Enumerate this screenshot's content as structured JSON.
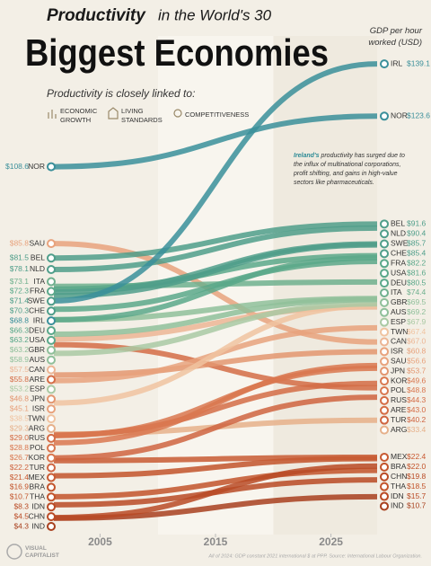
{
  "chart_data": {
    "type": "line",
    "title": [
      "Productivity",
      "in the World's 30",
      "Biggest Economies"
    ],
    "subtitle": "Productivity is closely linked to:",
    "drivers": [
      [
        "ECONOMIC",
        "GROWTH"
      ],
      [
        "LIVING",
        "STANDARDS"
      ],
      [
        "COMPETITIVENESS"
      ]
    ],
    "y_label": [
      "GDP per hour",
      "worked (USD)"
    ],
    "annotation_highlight": "Ireland's",
    "annotation": [
      " productivity has surged due to",
      "the influx of multinational corporations,",
      "profit shifting, and gains in high-value",
      "sectors like pharmaceuticals."
    ],
    "source": "All of 2024: GDP constant 2021 international $ at PPP. Source: International Labour Organization.",
    "brand": [
      "VISUAL",
      "CAPITALIST"
    ],
    "x": [
      2001,
      2029
    ],
    "xlim": [
      2001,
      2029
    ],
    "xticks": [
      2005,
      2015,
      2025
    ],
    "ylim": [
      0,
      145
    ],
    "series": [
      {
        "name": "IRL",
        "color": "#3a8f9a",
        "values": [
          68.8,
          139.1
        ],
        "value_labels": [
          "$68.8",
          "$139.1"
        ]
      },
      {
        "name": "NOR",
        "color": "#3a8f9a",
        "values": [
          108.6,
          123.6
        ],
        "value_labels": [
          "$108.6",
          "$123.6"
        ]
      },
      {
        "name": "BEL",
        "color": "#4f9e8a",
        "values": [
          81.5,
          91.6
        ],
        "value_labels": [
          "$81.5",
          "$91.6"
        ]
      },
      {
        "name": "NLD",
        "color": "#4f9e8a",
        "values": [
          78.1,
          90.4
        ],
        "value_labels": [
          "$78.1",
          "$90.4"
        ]
      },
      {
        "name": "SWE",
        "color": "#4f9e8a",
        "values": [
          71.4,
          85.7
        ],
        "value_labels": [
          "$71.4",
          "$85.7"
        ]
      },
      {
        "name": "CHE",
        "color": "#4f9e8a",
        "values": [
          70.3,
          85.4
        ],
        "value_labels": [
          "$70.3",
          "$85.4"
        ]
      },
      {
        "name": "FRA",
        "color": "#5aa88a",
        "values": [
          72.3,
          82.2
        ],
        "value_labels": [
          "$72.3",
          "$82.2"
        ]
      },
      {
        "name": "USA",
        "color": "#5aa88a",
        "values": [
          63.2,
          81.6
        ],
        "value_labels": [
          "$63.2",
          "$81.6"
        ]
      },
      {
        "name": "DEU",
        "color": "#5aa88a",
        "values": [
          66.3,
          80.5
        ],
        "value_labels": [
          "$66.3",
          "$80.5"
        ]
      },
      {
        "name": "ITA",
        "color": "#6fb08e",
        "values": [
          73.1,
          74.4
        ],
        "value_labels": [
          "$73.1",
          "$74.4"
        ]
      },
      {
        "name": "GBR",
        "color": "#8fbf9a",
        "values": [
          63.2,
          69.5
        ],
        "value_labels": [
          "$63.2",
          "$69.5"
        ]
      },
      {
        "name": "AUS",
        "color": "#8fbf9a",
        "values": [
          58.9,
          69.2
        ],
        "value_labels": [
          "$58.9",
          "$69.2"
        ]
      },
      {
        "name": "ESP",
        "color": "#a9c9a3",
        "values": [
          53.2,
          67.9
        ],
        "value_labels": [
          "$53.2",
          "$67.9"
        ]
      },
      {
        "name": "TWN",
        "color": "#f0c3a0",
        "values": [
          38.5,
          67.4
        ],
        "value_labels": [
          "$38.5",
          "$67.4"
        ]
      },
      {
        "name": "CAN",
        "color": "#ecb594",
        "values": [
          57.5,
          67.0
        ],
        "value_labels": [
          "$57.5",
          "$67.0"
        ]
      },
      {
        "name": "ISR",
        "color": "#e8a27c",
        "values": [
          45.1,
          60.8
        ],
        "value_labels": [
          "$45.1",
          "$60.8"
        ]
      },
      {
        "name": "SAU",
        "color": "#e8a27c",
        "values": [
          85.8,
          56.6
        ],
        "value_labels": [
          "$85.8",
          "$56.6"
        ]
      },
      {
        "name": "JPN",
        "color": "#e39670",
        "values": [
          46.8,
          53.7
        ],
        "value_labels": [
          "$46.8",
          "$53.7"
        ]
      },
      {
        "name": "KOR",
        "color": "#d9774f",
        "values": [
          26.7,
          49.6
        ],
        "value_labels": [
          "$26.7",
          "$49.6"
        ]
      },
      {
        "name": "POL",
        "color": "#d9774f",
        "values": [
          28.8,
          48.8
        ],
        "value_labels": [
          "$28.8",
          "$48.8"
        ]
      },
      {
        "name": "RUS",
        "color": "#d46c45",
        "values": [
          29.0,
          44.3
        ],
        "value_labels": [
          "$29.0",
          "$44.3"
        ]
      },
      {
        "name": "ARE",
        "color": "#d46c45",
        "values": [
          55.8,
          43.0
        ],
        "value_labels": [
          "$55.8",
          "$43.0"
        ]
      },
      {
        "name": "TUR",
        "color": "#cf6440",
        "values": [
          22.2,
          40.2
        ],
        "value_labels": [
          "$22.2",
          "$40.2"
        ]
      },
      {
        "name": "ARG",
        "color": "#e6b08a",
        "values": [
          29.3,
          33.4
        ],
        "value_labels": [
          "$29.3",
          "$33.4"
        ]
      },
      {
        "name": "MEX",
        "color": "#c85a32",
        "values": [
          21.4,
          22.4
        ],
        "value_labels": [
          "$21.4",
          "$22.4"
        ]
      },
      {
        "name": "BRA",
        "color": "#c2532a",
        "values": [
          16.9,
          22.0
        ],
        "value_labels": [
          "$16.9",
          "$22.0"
        ]
      },
      {
        "name": "CHN",
        "color": "#b94a24",
        "values": [
          4.5,
          19.8
        ],
        "value_labels": [
          "$4.5",
          "$19.8"
        ]
      },
      {
        "name": "THA",
        "color": "#c2532a",
        "values": [
          10.7,
          18.5
        ],
        "value_labels": [
          "$10.7",
          "$18.5"
        ]
      },
      {
        "name": "IDN",
        "color": "#b94a24",
        "values": [
          8.3,
          15.7
        ],
        "value_labels": [
          "$8.3",
          "$15.7"
        ]
      },
      {
        "name": "IND",
        "color": "#a8401e",
        "values": [
          4.3,
          10.7
        ],
        "value_labels": [
          "$4.3",
          "$10.7"
        ]
      }
    ]
  }
}
